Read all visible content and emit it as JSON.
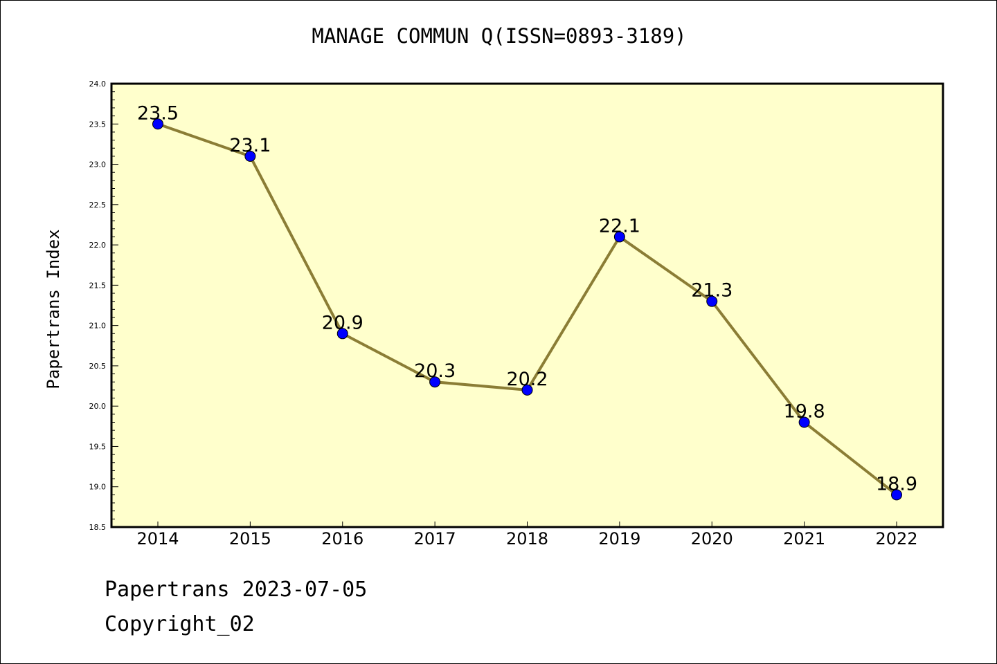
{
  "colors": {
    "plot_background": "#ffffcc",
    "line": "#8b7d35",
    "marker": "#0000ff",
    "axis": "#000000"
  },
  "footer": {
    "date_line": "Papertrans 2023-07-05",
    "copyright": "Copyright_02"
  },
  "chart_data": {
    "type": "line",
    "title": "MANAGE COMMUN Q(ISSN=0893-3189)",
    "xlabel": "",
    "ylabel": "Papertrans Index",
    "categories": [
      "2014",
      "2015",
      "2016",
      "2017",
      "2018",
      "2019",
      "2020",
      "2021",
      "2022"
    ],
    "series": [
      {
        "values": [
          23.5,
          23.1,
          20.9,
          20.3,
          20.2,
          22.1,
          21.3,
          19.8,
          18.9
        ],
        "data_labels": [
          "23.5",
          "23.1",
          "20.9",
          "20.3",
          "20.2",
          "22.1",
          "21.3",
          "19.8",
          "18.9"
        ]
      }
    ],
    "ylim": [
      18.5,
      24.0
    ],
    "yticks": [
      "18.5",
      "19.0",
      "19.5",
      "20.0",
      "20.5",
      "21.0",
      "21.5",
      "22.0",
      "22.5",
      "23.0",
      "23.5",
      "24.0"
    ],
    "grid": false,
    "legend": "none"
  }
}
